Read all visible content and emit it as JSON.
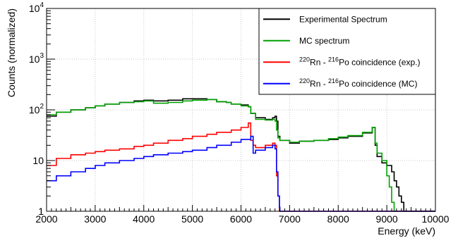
{
  "chart_data": {
    "type": "line",
    "title": "",
    "xlabel": "Energy (keV)",
    "ylabel": "Counts (normalized)",
    "xlim": [
      2000,
      10000
    ],
    "ylim": [
      1,
      10000
    ],
    "yscale": "log",
    "grid": true,
    "legend_position": "top-right",
    "x_ticks": [
      "2000",
      "3000",
      "4000",
      "5000",
      "6000",
      "7000",
      "8000",
      "9000",
      "10000"
    ],
    "y_ticks": [
      {
        "base": "1",
        "exp": ""
      },
      {
        "base": "10",
        "exp": ""
      },
      {
        "base": "10",
        "exp": "2"
      },
      {
        "base": "10",
        "exp": "3"
      },
      {
        "base": "10",
        "exp": "4"
      }
    ],
    "series": [
      {
        "name": "Experimental Spectrum",
        "color": "#000000",
        "legend_parts": [
          {
            "text": "Experimental Spectrum",
            "sup": false
          }
        ],
        "x": [
          2000,
          2200,
          2500,
          2800,
          3000,
          3200,
          3500,
          3800,
          4000,
          4200,
          4500,
          4800,
          5000,
          5300,
          5500,
          5700,
          5800,
          6000,
          6150,
          6200,
          6300,
          6500,
          6650,
          6700,
          6730,
          6760,
          6800,
          7000,
          7200,
          7500,
          7800,
          8000,
          8200,
          8500,
          8700,
          8760,
          8800,
          8900,
          9000,
          9100,
          9150,
          9200,
          9250,
          9300,
          9350,
          10000
        ],
        "y": [
          75,
          90,
          100,
          110,
          120,
          130,
          140,
          150,
          155,
          150,
          155,
          165,
          165,
          160,
          145,
          140,
          130,
          125,
          115,
          85,
          70,
          65,
          70,
          75,
          60,
          30,
          25,
          22,
          24,
          25,
          26,
          28,
          30,
          35,
          45,
          20,
          12,
          9,
          8,
          6,
          4,
          3,
          2,
          1.5,
          1,
          1
        ]
      },
      {
        "name": "MC spectrum",
        "color": "#00a000",
        "legend_parts": [
          {
            "text": "MC spectrum",
            "sup": false
          }
        ],
        "x": [
          2000,
          2200,
          2500,
          2800,
          3000,
          3200,
          3500,
          3800,
          4000,
          4200,
          4500,
          4800,
          5000,
          5300,
          5500,
          5700,
          5800,
          6000,
          6150,
          6200,
          6300,
          6500,
          6650,
          6700,
          6730,
          6760,
          6800,
          7000,
          7200,
          7500,
          7800,
          8000,
          8200,
          8500,
          8700,
          8760,
          8800,
          8900,
          9000,
          9050,
          9100,
          9150,
          10000
        ],
        "y": [
          80,
          90,
          100,
          110,
          120,
          130,
          140,
          145,
          150,
          135,
          140,
          150,
          155,
          160,
          145,
          140,
          130,
          120,
          115,
          85,
          65,
          63,
          65,
          60,
          40,
          28,
          25,
          23,
          24,
          25,
          27,
          29,
          31,
          36,
          45,
          22,
          14,
          10,
          5,
          3,
          1.5,
          1,
          1
        ]
      },
      {
        "name": "220Rn - 216Po coincidence (exp.)",
        "color": "#ff0000",
        "legend_parts": [
          {
            "text": "220",
            "sup": true
          },
          {
            "text": "Rn - ",
            "sup": false
          },
          {
            "text": "216",
            "sup": true
          },
          {
            "text": "Po coincidence (exp.)",
            "sup": false
          }
        ],
        "x": [
          2000,
          2200,
          2500,
          2800,
          3000,
          3200,
          3500,
          3800,
          4000,
          4200,
          4500,
          4800,
          5000,
          5300,
          5500,
          5800,
          6000,
          6150,
          6200,
          6250,
          6300,
          6500,
          6650,
          6700,
          6730,
          6760,
          6790,
          6800,
          10000
        ],
        "y": [
          8,
          11,
          13,
          14,
          15,
          16,
          17,
          19,
          20,
          22,
          25,
          27,
          30,
          33,
          36,
          40,
          45,
          55,
          25,
          20,
          18,
          20,
          22,
          20,
          5,
          2,
          1,
          1,
          1
        ]
      },
      {
        "name": "220Rn - 216Po coincidence (MC)",
        "color": "#0000ff",
        "legend_parts": [
          {
            "text": "220",
            "sup": true
          },
          {
            "text": "Rn - ",
            "sup": false
          },
          {
            "text": "216",
            "sup": true
          },
          {
            "text": "Po coincidence (MC)",
            "sup": false
          }
        ],
        "x": [
          2000,
          2200,
          2500,
          2800,
          3000,
          3200,
          3500,
          3800,
          4000,
          4200,
          4500,
          4800,
          5000,
          5300,
          5500,
          5800,
          6000,
          6200,
          6250,
          6300,
          6500,
          6650,
          6700,
          6730,
          6760,
          6790,
          6800,
          10000
        ],
        "y": [
          4,
          5,
          6,
          7,
          8,
          9,
          10,
          11,
          12,
          13,
          14,
          15,
          16,
          18,
          20,
          23,
          26,
          30,
          14,
          16,
          18,
          20,
          17,
          6,
          2,
          1.2,
          1,
          1
        ]
      }
    ]
  }
}
